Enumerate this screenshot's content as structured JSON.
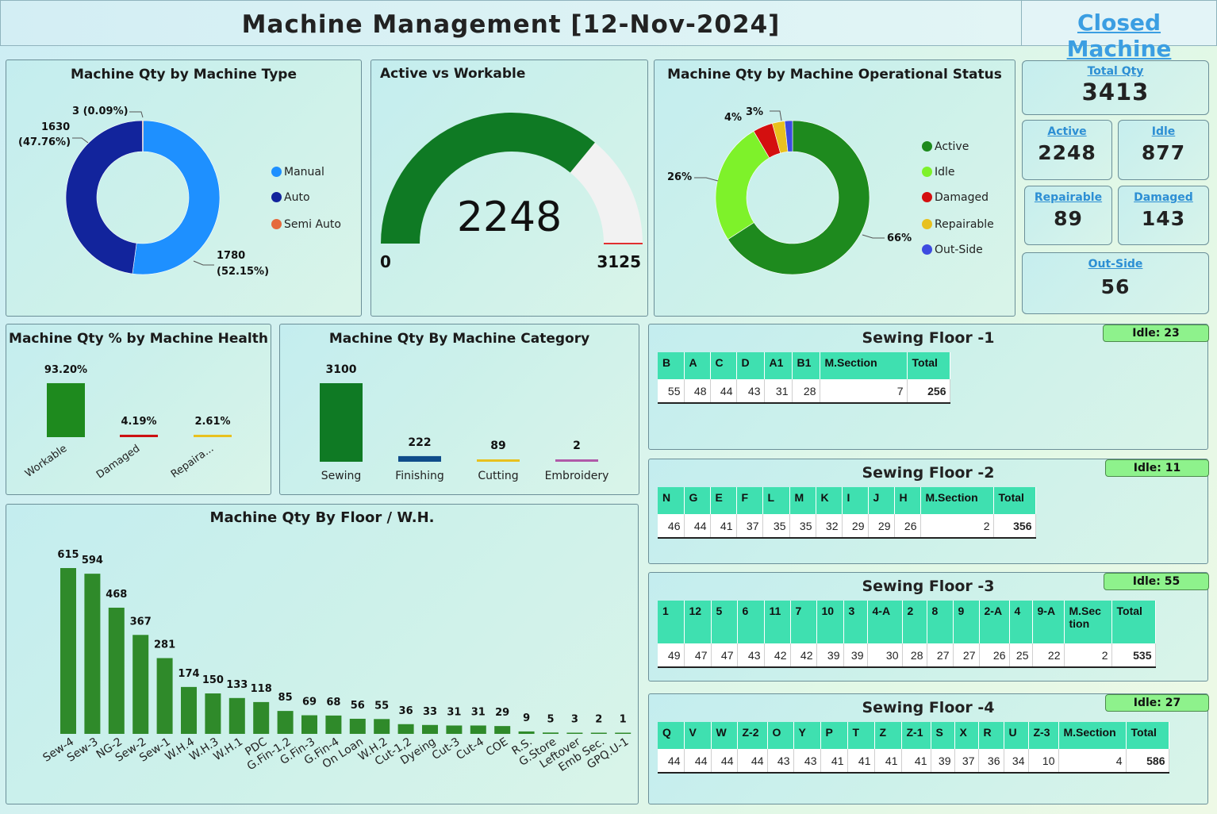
{
  "header": {
    "title": "Machine Management [12-Nov-2024]",
    "closed_machine_link": "Closed Machine"
  },
  "colors": {
    "dark_green": "#0f7a24",
    "bar_green": "#2f8a2a",
    "teal_header": "#3fe0b0",
    "link_blue": "#3b9ee2",
    "idle_badge": "#8ef28c"
  },
  "machine_type": {
    "title": "Machine Qty by Machine Type",
    "chart_data": {
      "type": "pie",
      "categories": [
        "Manual",
        "Auto",
        "Semi Auto"
      ],
      "values": [
        1780,
        1630,
        3
      ],
      "colors": [
        "#1e90ff",
        "#12249c",
        "#e56a3c"
      ],
      "data_labels": [
        "1780\n(52.15%)",
        "1630\n(47.76%)",
        "3 (0.09%)"
      ]
    },
    "label_manual_1": "1780",
    "label_manual_2": "(52.15%)",
    "label_auto_1": "1630",
    "label_auto_2": "(47.76%)",
    "label_semi": "3 (0.09%)",
    "legend": [
      "Manual",
      "Auto",
      "Semi Auto"
    ]
  },
  "active_vs_workable": {
    "title": "Active vs Workable",
    "chart_data": {
      "type": "gauge",
      "value": 2248,
      "min": 0,
      "max": 3125,
      "target": 3125
    },
    "value_label": "2248",
    "min_label": "0",
    "max_label": "3125"
  },
  "operational_status": {
    "title": "Machine Qty by Machine Operational Status",
    "chart_data": {
      "type": "pie",
      "categories": [
        "Active",
        "Idle",
        "Damaged",
        "Repairable",
        "Out-Side"
      ],
      "values": [
        2248,
        877,
        143,
        89,
        56
      ],
      "colors": [
        "#1e8a1e",
        "#7ef22a",
        "#d40f0f",
        "#e8c11e",
        "#3d4be0"
      ]
    },
    "labels": [
      "66%",
      "26%",
      "4%",
      "3%"
    ],
    "legend": [
      "Active",
      "Idle",
      "Damaged",
      "Repairable",
      "Out-Side"
    ]
  },
  "kpis": {
    "total": {
      "title": "Total Qty",
      "value": "3413"
    },
    "active": {
      "title": "Active",
      "value": "2248"
    },
    "idle": {
      "title": "Idle",
      "value": "877"
    },
    "repairable": {
      "title": "Repairable",
      "value": "89"
    },
    "damaged": {
      "title": "Damaged",
      "value": "143"
    },
    "outside": {
      "title": "Out-Side",
      "value": "56"
    }
  },
  "health": {
    "title": "Machine Qty % by Machine Health",
    "chart_data": {
      "type": "bar",
      "categories": [
        "Workable",
        "Damaged",
        "Repaira..."
      ],
      "values": [
        93.2,
        4.19,
        2.61
      ],
      "value_labels": [
        "93.20%",
        "4.19%",
        "2.61%"
      ],
      "colors": [
        "#1e8a1e",
        "#cc1111",
        "#e8c11e"
      ]
    }
  },
  "category": {
    "title": "Machine Qty By Machine Category",
    "chart_data": {
      "type": "bar",
      "categories": [
        "Sewing",
        "Finishing",
        "Cutting",
        "Embroidery"
      ],
      "values": [
        3100,
        222,
        89,
        2
      ],
      "colors": [
        "#0f7a24",
        "#0f4c8a",
        "#e8c11e",
        "#b05aa8"
      ]
    }
  },
  "floor_wh": {
    "title": "Machine Qty By Floor / W.H.",
    "chart_data": {
      "type": "bar",
      "categories": [
        "Sew-4",
        "Sew-3",
        "NG-2",
        "Sew-2",
        "Sew-1",
        "W.H.4",
        "W.H.3",
        "W.H.1",
        "PDC",
        "G.Fin-1,2",
        "G.Fin-3",
        "G.Fin-4",
        "On Loan",
        "W.H.2",
        "Cut-1,2",
        "Dyeing",
        "Cut-3",
        "Cut-4",
        "COE",
        "R.S.",
        "G.Store",
        "Leftover",
        "Emb Sec.",
        "GPQ.U-1"
      ],
      "values": [
        615,
        594,
        468,
        367,
        281,
        174,
        150,
        133,
        118,
        85,
        69,
        68,
        56,
        55,
        36,
        33,
        31,
        31,
        29,
        9,
        5,
        3,
        2,
        1
      ]
    }
  },
  "floors": [
    {
      "title": "Sewing Floor -1",
      "idle": "Idle: 23",
      "headers": [
        "B",
        "A",
        "C",
        "D",
        "A1",
        "B1",
        "M.Section",
        "Total"
      ],
      "values": [
        "55",
        "48",
        "44",
        "43",
        "31",
        "28",
        "7",
        "256"
      ]
    },
    {
      "title": "Sewing Floor -2",
      "idle": "Idle: 11",
      "headers": [
        "N",
        "G",
        "E",
        "F",
        "L",
        "M",
        "K",
        "I",
        "J",
        "H",
        "M.Section",
        "Total"
      ],
      "values": [
        "46",
        "44",
        "41",
        "37",
        "35",
        "35",
        "32",
        "29",
        "29",
        "26",
        "2",
        "356"
      ]
    },
    {
      "title": "Sewing Floor -3",
      "idle": "Idle: 55",
      "headers": [
        "1",
        "12",
        "5",
        "6",
        "11",
        "7",
        "10",
        "3",
        "4-A",
        "2",
        "8",
        "9",
        "2-A",
        "4",
        "9-A",
        "M.Sec tion",
        "Total"
      ],
      "values": [
        "49",
        "47",
        "47",
        "43",
        "42",
        "42",
        "39",
        "39",
        "30",
        "28",
        "27",
        "27",
        "26",
        "25",
        "22",
        "2",
        "535"
      ]
    },
    {
      "title": "Sewing Floor -4",
      "idle": "Idle: 27",
      "headers": [
        "Q",
        "V",
        "W",
        "Z-2",
        "O",
        "Y",
        "P",
        "T",
        "Z",
        "Z-1",
        "S",
        "X",
        "R",
        "U",
        "Z-3",
        "M.Section",
        "Total"
      ],
      "values": [
        "44",
        "44",
        "44",
        "44",
        "43",
        "43",
        "41",
        "41",
        "41",
        "41",
        "39",
        "37",
        "36",
        "34",
        "10",
        "4",
        "586"
      ]
    }
  ]
}
